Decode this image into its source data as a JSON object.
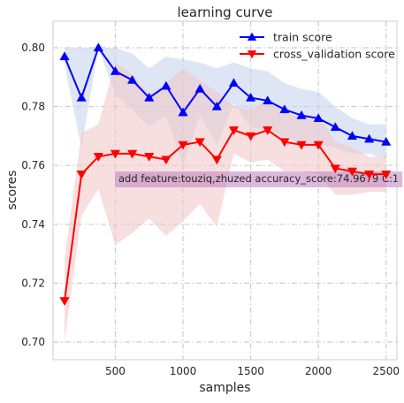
{
  "chart_data": {
    "type": "line",
    "title": "learning curve",
    "xlabel": "samples",
    "ylabel": "scores",
    "xlim": [
      40,
      2580
    ],
    "ylim": [
      0.694,
      0.809
    ],
    "xticks": [
      500,
      1000,
      1500,
      2000,
      2500
    ],
    "xtick_labels": [
      "500",
      "1000",
      "1500",
      "2000",
      "2500"
    ],
    "yticks": [
      0.7,
      0.72,
      0.74,
      0.76,
      0.78,
      0.8
    ],
    "ytick_labels": [
      "0.70",
      "0.72",
      "0.74",
      "0.76",
      "0.78",
      "0.80"
    ],
    "grid": true,
    "legend_position": "top-right",
    "x": [
      125,
      250,
      375,
      500,
      625,
      750,
      875,
      1000,
      1125,
      1250,
      1375,
      1500,
      1625,
      1750,
      1875,
      2000,
      2125,
      2250,
      2375,
      2500
    ],
    "series": [
      {
        "name": "train score",
        "color": "#0000ff",
        "marker": "triangle-up",
        "values": [
          0.797,
          0.783,
          0.8,
          0.792,
          0.789,
          0.783,
          0.787,
          0.778,
          0.786,
          0.78,
          0.788,
          0.783,
          0.782,
          0.779,
          0.777,
          0.776,
          0.773,
          0.77,
          0.769,
          0.768
        ],
        "band_color": "#c2d1ee",
        "band_upper": [
          0.8,
          0.8,
          0.8,
          0.8,
          0.798,
          0.793,
          0.797,
          0.796,
          0.795,
          0.793,
          0.795,
          0.793,
          0.792,
          0.788,
          0.786,
          0.785,
          0.78,
          0.776,
          0.774,
          0.774
        ],
        "band_lower": [
          0.794,
          0.766,
          0.8,
          0.784,
          0.779,
          0.773,
          0.777,
          0.76,
          0.777,
          0.767,
          0.781,
          0.773,
          0.772,
          0.77,
          0.768,
          0.767,
          0.766,
          0.764,
          0.764,
          0.762
        ]
      },
      {
        "name": "cross_validation score",
        "color": "#ff0000",
        "marker": "triangle-down",
        "values": [
          0.714,
          0.757,
          0.763,
          0.764,
          0.764,
          0.763,
          0.762,
          0.767,
          0.768,
          0.762,
          0.772,
          0.77,
          0.772,
          0.768,
          0.767,
          0.767,
          0.759,
          0.758,
          0.757,
          0.757
        ],
        "band_color": "#f0c4c4",
        "band_upper": [
          0.728,
          0.771,
          0.774,
          0.795,
          0.791,
          0.784,
          0.788,
          0.793,
          0.789,
          0.785,
          0.78,
          0.779,
          0.782,
          0.778,
          0.776,
          0.777,
          0.768,
          0.766,
          0.763,
          0.763
        ],
        "band_lower": [
          0.7,
          0.743,
          0.752,
          0.733,
          0.737,
          0.742,
          0.736,
          0.741,
          0.747,
          0.739,
          0.764,
          0.761,
          0.762,
          0.758,
          0.758,
          0.757,
          0.75,
          0.75,
          0.751,
          0.751
        ]
      }
    ],
    "annotation": {
      "text": "add feature:touziq,zhuzed accuracy_score:74.9679 C:1",
      "box_color": "#bf7fbf"
    }
  }
}
